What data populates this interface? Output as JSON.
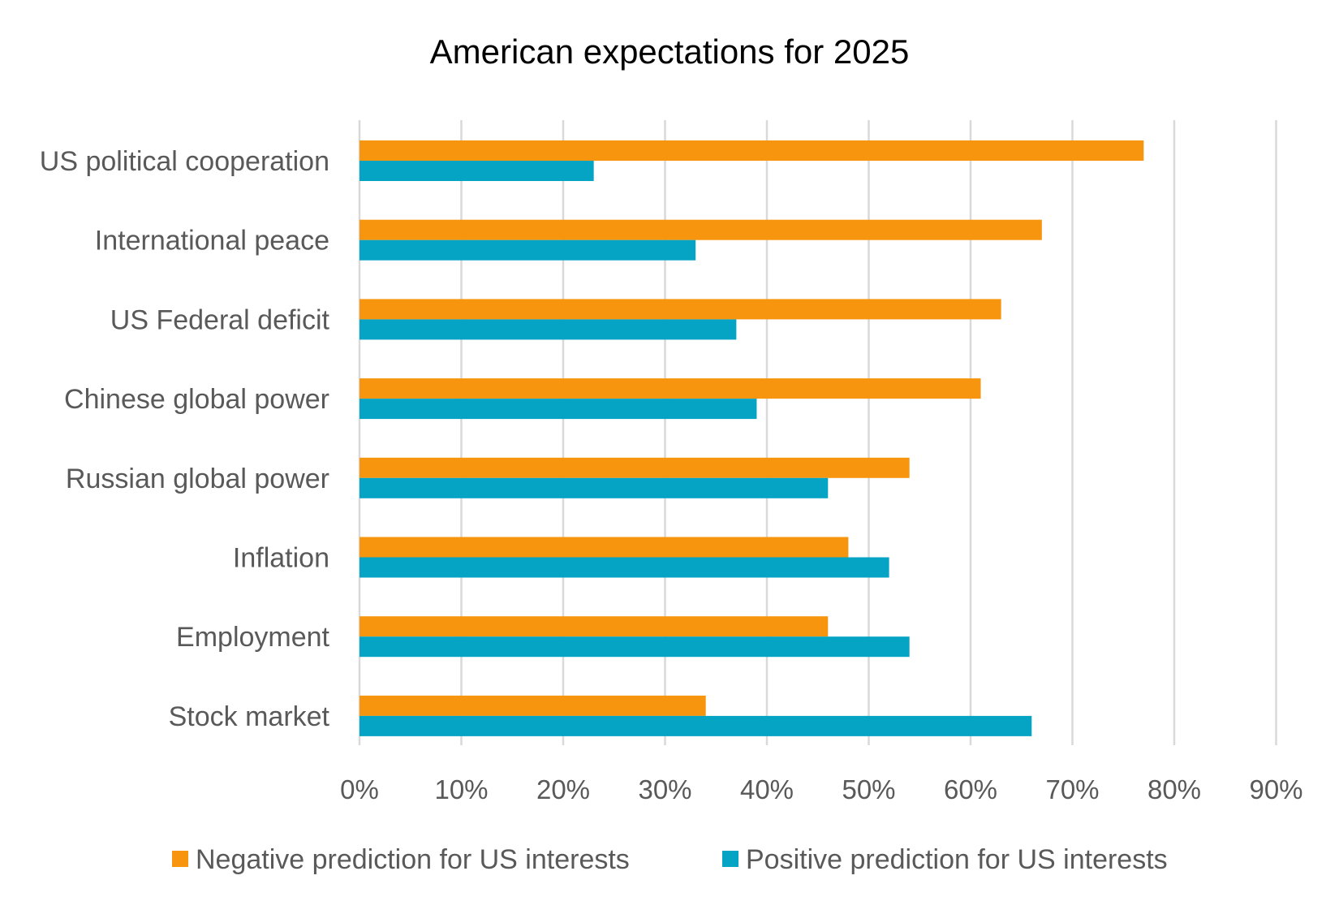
{
  "chart_data": {
    "type": "bar",
    "orientation": "horizontal",
    "title": "American expectations for 2025",
    "categories": [
      "US political cooperation",
      "International peace",
      "US Federal deficit",
      "Chinese global power",
      "Russian global power",
      "Inflation",
      "Employment",
      "Stock market"
    ],
    "series": [
      {
        "name": "Negative prediction for US interests",
        "color": "#f7960e",
        "values": [
          0.77,
          0.67,
          0.63,
          0.61,
          0.54,
          0.48,
          0.46,
          0.34
        ]
      },
      {
        "name": "Positive prediction for US interests",
        "color": "#05a3c4",
        "values": [
          0.23,
          0.33,
          0.37,
          0.39,
          0.46,
          0.52,
          0.54,
          0.66
        ]
      }
    ],
    "xlim": [
      0,
      0.9
    ],
    "xticks": [
      "0%",
      "10%",
      "20%",
      "30%",
      "40%",
      "50%",
      "60%",
      "70%",
      "80%",
      "90%"
    ],
    "xlabel": "",
    "ylabel": "",
    "grid": "vertical",
    "legend": "bottom"
  }
}
